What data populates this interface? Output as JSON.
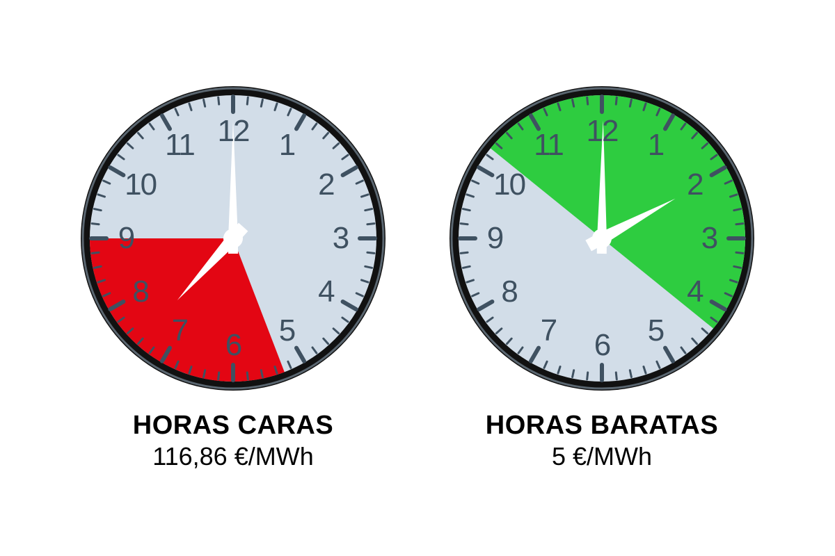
{
  "background_color": "#ffffff",
  "clocks": [
    {
      "id": "expensive",
      "title": "HORAS CARAS",
      "price": "116,86 €/MWh",
      "sector_color": "#e30613",
      "sector_start_hour": 5.3,
      "sector_end_hour": 9,
      "hour_hand_pos": 7.4,
      "minute_hand_pos": 0
    },
    {
      "id": "cheap",
      "title": "HORAS BARATAS",
      "price": "5 €/MWh",
      "sector_color": "#2ecc40",
      "sector_start_hour": 10.3,
      "sector_end_hour": 16.3,
      "hour_hand_pos": 2.05,
      "minute_hand_pos": 0.1
    }
  ],
  "clock_style": {
    "size": 440,
    "outer_ring_color": "#111111",
    "outer_ring_width": 14,
    "bezel_highlight_color": "#5a6670",
    "face_color": "#d2dde8",
    "numeral_color": "#3f5161",
    "numeral_fontsize": 44,
    "tick_color": "#3f5161",
    "major_tick_len": 22,
    "major_tick_width": 6,
    "minor_tick_len": 10,
    "minor_tick_width": 3,
    "hand_color": "#ffffff",
    "minute_hand_len": 170,
    "minute_hand_width": 14,
    "hour_hand_len": 120,
    "hour_hand_width": 18,
    "hub_radius": 14
  },
  "caption_style": {
    "title_fontsize": 38,
    "title_weight": 800,
    "price_fontsize": 36,
    "text_color": "#000000"
  }
}
